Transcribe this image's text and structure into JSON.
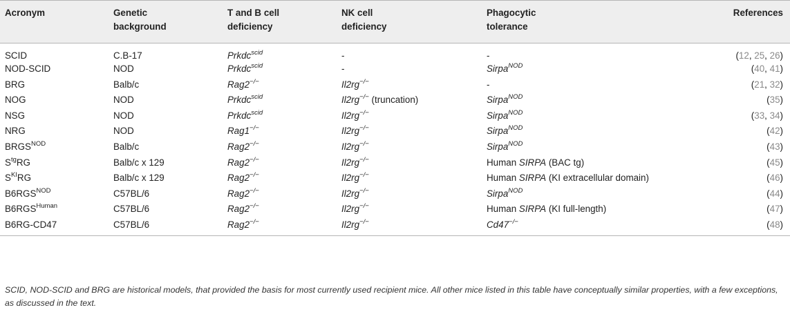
{
  "table": {
    "headers": [
      [
        "Acronym"
      ],
      [
        "Genetic",
        "background"
      ],
      [
        "T and B cell",
        "deficiency"
      ],
      [
        "NK cell",
        "deficiency"
      ],
      [
        "Phagocytic",
        "tolerance"
      ],
      [
        "References"
      ]
    ],
    "rows": [
      {
        "acronym": [
          {
            "t": "SCID"
          }
        ],
        "background": "C.B-17",
        "tb": [
          {
            "t": "Prkdc",
            "i": true
          },
          {
            "t": "scid",
            "i": true,
            "sup": true
          }
        ],
        "nk": [
          {
            "t": "-"
          }
        ],
        "phago": [
          {
            "t": "-"
          }
        ],
        "refs": [
          "12",
          "25",
          "26"
        ]
      },
      {
        "acronym": [
          {
            "t": "NOD-SCID"
          }
        ],
        "background": "NOD",
        "tb": [
          {
            "t": "Prkdc",
            "i": true
          },
          {
            "t": "scid",
            "i": true,
            "sup": true
          }
        ],
        "nk": [
          {
            "t": "-"
          }
        ],
        "phago": [
          {
            "t": "Sirpa",
            "i": true
          },
          {
            "t": "NOD",
            "i": true,
            "sup": true
          }
        ],
        "refs": [
          "40",
          "41"
        ]
      },
      {
        "acronym": [
          {
            "t": "BRG"
          }
        ],
        "background": "Balb/c",
        "tb": [
          {
            "t": "Rag2",
            "i": true
          },
          {
            "t": "−/−",
            "i": true,
            "sup": true
          }
        ],
        "nk": [
          {
            "t": "Il2rg",
            "i": true
          },
          {
            "t": "−/−",
            "i": true,
            "sup": true
          }
        ],
        "phago": [
          {
            "t": "-"
          }
        ],
        "refs": [
          "21",
          "32"
        ]
      },
      {
        "acronym": [
          {
            "t": "NOG"
          }
        ],
        "background": "NOD",
        "tb": [
          {
            "t": "Prkdc",
            "i": true
          },
          {
            "t": "scid",
            "i": true,
            "sup": true
          }
        ],
        "nk": [
          {
            "t": "Il2rg",
            "i": true
          },
          {
            "t": "−/−",
            "i": true,
            "sup": true
          },
          {
            "t": " (truncation)"
          }
        ],
        "phago": [
          {
            "t": "Sirpa",
            "i": true
          },
          {
            "t": "NOD",
            "i": true,
            "sup": true
          }
        ],
        "refs": [
          "35"
        ]
      },
      {
        "acronym": [
          {
            "t": "NSG"
          }
        ],
        "background": "NOD",
        "tb": [
          {
            "t": "Prkdc",
            "i": true
          },
          {
            "t": "scid",
            "i": true,
            "sup": true
          }
        ],
        "nk": [
          {
            "t": "Il2rg",
            "i": true
          },
          {
            "t": "−/−",
            "i": true,
            "sup": true
          }
        ],
        "phago": [
          {
            "t": "Sirpa",
            "i": true
          },
          {
            "t": "NOD",
            "i": true,
            "sup": true
          }
        ],
        "refs": [
          "33",
          "34"
        ]
      },
      {
        "acronym": [
          {
            "t": "NRG"
          }
        ],
        "background": "NOD",
        "tb": [
          {
            "t": "Rag1",
            "i": true
          },
          {
            "t": "−/−",
            "i": true,
            "sup": true
          }
        ],
        "nk": [
          {
            "t": "Il2rg",
            "i": true
          },
          {
            "t": "−/−",
            "i": true,
            "sup": true
          }
        ],
        "phago": [
          {
            "t": "Sirpa",
            "i": true
          },
          {
            "t": "NOD",
            "i": true,
            "sup": true
          }
        ],
        "refs": [
          "42"
        ]
      },
      {
        "acronym": [
          {
            "t": "BRGS"
          },
          {
            "t": "NOD",
            "sup": true
          }
        ],
        "background": "Balb/c",
        "tb": [
          {
            "t": "Rag2",
            "i": true
          },
          {
            "t": "−/−",
            "i": true,
            "sup": true
          }
        ],
        "nk": [
          {
            "t": "Il2rg",
            "i": true
          },
          {
            "t": "−/−",
            "i": true,
            "sup": true
          }
        ],
        "phago": [
          {
            "t": "Sirpa",
            "i": true
          },
          {
            "t": "NOD",
            "i": true,
            "sup": true
          }
        ],
        "refs": [
          "43"
        ]
      },
      {
        "acronym": [
          {
            "t": "S"
          },
          {
            "t": "tg",
            "sup": true
          },
          {
            "t": "RG"
          }
        ],
        "background": "Balb/c x 129",
        "tb": [
          {
            "t": "Rag2",
            "i": true
          },
          {
            "t": "−/−",
            "i": true,
            "sup": true
          }
        ],
        "nk": [
          {
            "t": "Il2rg",
            "i": true
          },
          {
            "t": "−/−",
            "i": true,
            "sup": true
          }
        ],
        "phago": [
          {
            "t": "Human "
          },
          {
            "t": "SIRPA",
            "i": true
          },
          {
            "t": " (BAC tg)"
          }
        ],
        "refs": [
          "45"
        ]
      },
      {
        "acronym": [
          {
            "t": "S"
          },
          {
            "t": "KI",
            "sup": true
          },
          {
            "t": "RG"
          }
        ],
        "background": "Balb/c x 129",
        "tb": [
          {
            "t": "Rag2",
            "i": true
          },
          {
            "t": "−/−",
            "i": true,
            "sup": true
          }
        ],
        "nk": [
          {
            "t": "Il2rg",
            "i": true
          },
          {
            "t": "−/−",
            "i": true,
            "sup": true
          }
        ],
        "phago": [
          {
            "t": "Human "
          },
          {
            "t": "SIRPA",
            "i": true
          },
          {
            "t": " (KI extracellular domain)"
          }
        ],
        "refs": [
          "46"
        ]
      },
      {
        "acronym": [
          {
            "t": "B6RGS"
          },
          {
            "t": "NOD",
            "sup": true
          }
        ],
        "background": "C57BL/6",
        "tb": [
          {
            "t": "Rag2",
            "i": true
          },
          {
            "t": "−/−",
            "i": true,
            "sup": true
          }
        ],
        "nk": [
          {
            "t": "Il2rg",
            "i": true
          },
          {
            "t": "−/−",
            "i": true,
            "sup": true
          }
        ],
        "phago": [
          {
            "t": "Sirpa",
            "i": true
          },
          {
            "t": "NOD",
            "i": true,
            "sup": true
          }
        ],
        "refs": [
          "44"
        ]
      },
      {
        "acronym": [
          {
            "t": "B6RGS"
          },
          {
            "t": "Human",
            "sup": true
          }
        ],
        "background": "C57BL/6",
        "tb": [
          {
            "t": "Rag2",
            "i": true
          },
          {
            "t": "−/−",
            "i": true,
            "sup": true
          }
        ],
        "nk": [
          {
            "t": "Il2rg",
            "i": true
          },
          {
            "t": "−/−",
            "i": true,
            "sup": true
          }
        ],
        "phago": [
          {
            "t": "Human "
          },
          {
            "t": "SIRPA",
            "i": true
          },
          {
            "t": " (KI full-length)"
          }
        ],
        "refs": [
          "47"
        ]
      },
      {
        "acronym": [
          {
            "t": "B6RG-CD47"
          }
        ],
        "background": "C57BL/6",
        "tb": [
          {
            "t": "Rag2",
            "i": true
          },
          {
            "t": "−/−",
            "i": true,
            "sup": true
          }
        ],
        "nk": [
          {
            "t": "Il2rg",
            "i": true
          },
          {
            "t": "−/−",
            "i": true,
            "sup": true
          }
        ],
        "phago": [
          {
            "t": "Cd47",
            "i": true
          },
          {
            "t": "−/−",
            "i": true,
            "sup": true
          }
        ],
        "refs": [
          "48"
        ]
      }
    ],
    "footnote": "SCID, NOD-SCID and BRG are historical models, that provided the basis for most currently used recipient mice. All other mice listed in this table have conceptually similar properties, with a few exceptions, as discussed in the text."
  }
}
